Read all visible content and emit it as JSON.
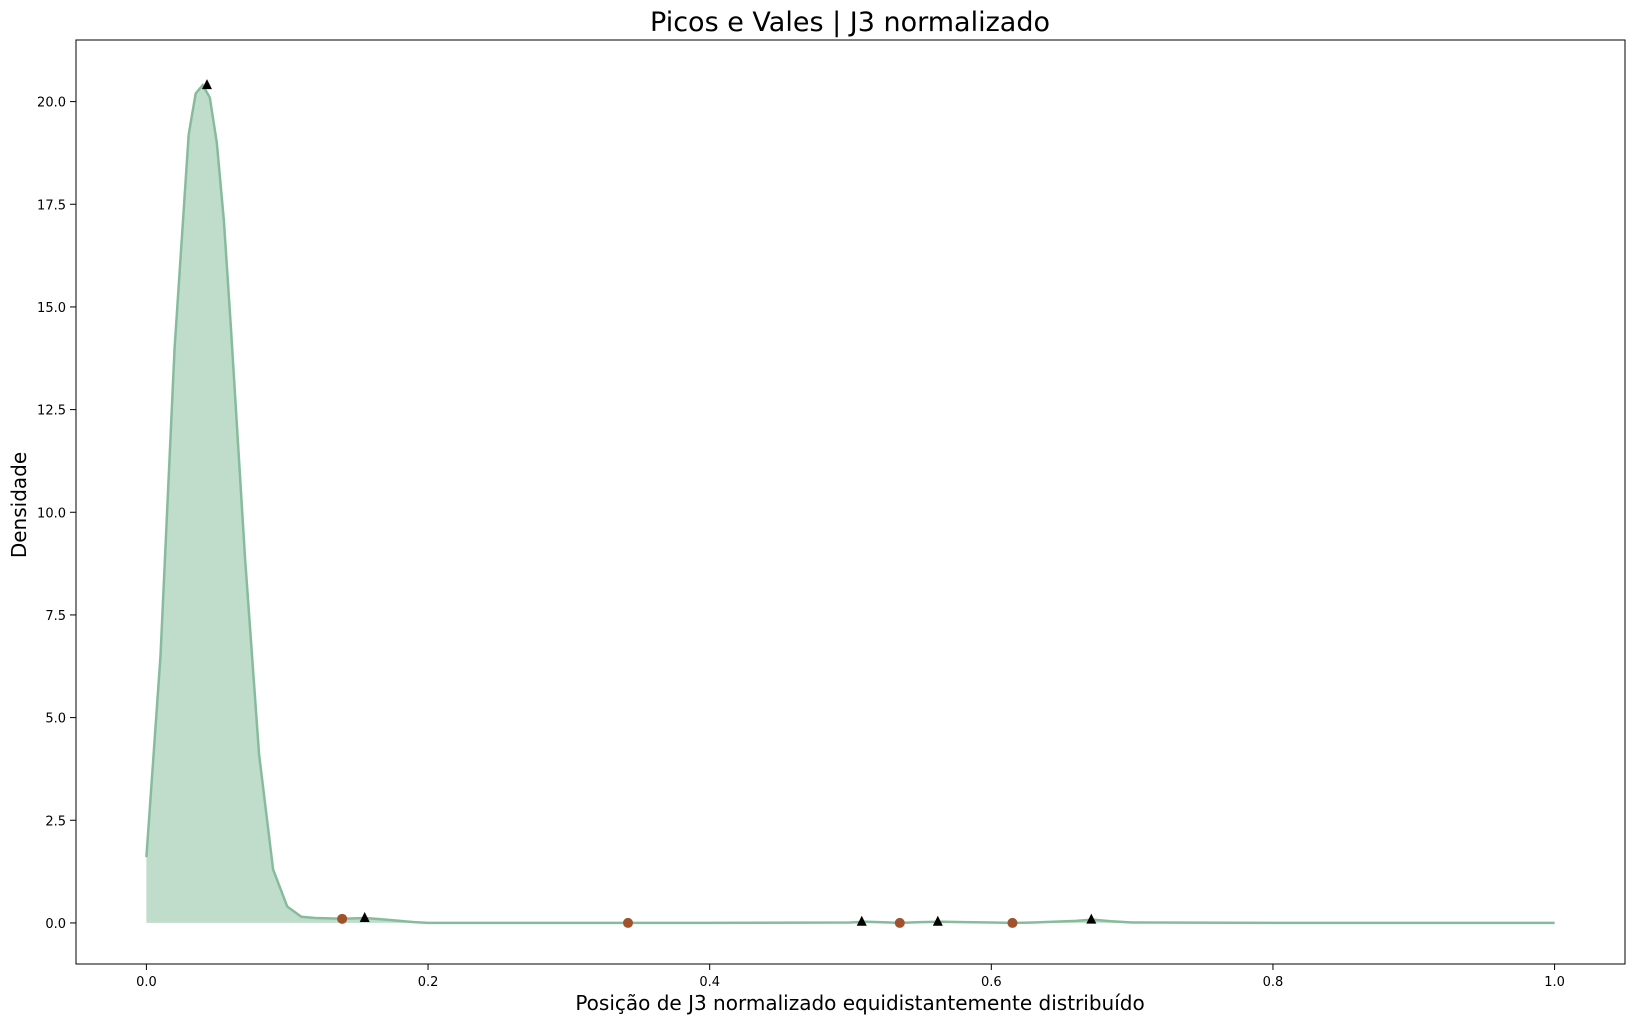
{
  "chart_data": {
    "type": "area",
    "title": "Picos e Vales | J3 normalizado",
    "xlabel": "Posição de J3 normalizado equidistantemente distribuído",
    "ylabel": "Densidade",
    "xlim": [
      -0.05,
      1.05
    ],
    "ylim": [
      -1.0,
      21.5
    ],
    "xticks": [
      0.0,
      0.2,
      0.4,
      0.6,
      0.8,
      1.0
    ],
    "xtick_labels": [
      "0.0",
      "0.2",
      "0.4",
      "0.6",
      "0.8",
      "1.0"
    ],
    "yticks": [
      0.0,
      2.5,
      5.0,
      7.5,
      10.0,
      12.5,
      15.0,
      17.5,
      20.0
    ],
    "ytick_labels": [
      "0.0",
      "2.5",
      "5.0",
      "7.5",
      "10.0",
      "12.5",
      "15.0",
      "17.5",
      "20.0"
    ],
    "grid": false,
    "legend": "none",
    "colors": {
      "area_fill": "#c0ddcc",
      "line": "#86bc9c",
      "peak_marker": "#000000",
      "valley_marker": "#a0522d"
    },
    "series": [
      {
        "x": [
          0.0,
          0.01,
          0.02,
          0.03,
          0.035,
          0.04,
          0.045,
          0.05,
          0.055,
          0.06,
          0.07,
          0.08,
          0.09,
          0.1,
          0.11,
          0.12,
          0.13,
          0.14,
          0.155,
          0.17,
          0.19,
          0.2,
          0.3,
          0.4,
          0.5,
          0.51,
          0.52,
          0.535,
          0.55,
          0.565,
          0.58,
          0.6,
          0.615,
          0.63,
          0.66,
          0.672,
          0.685,
          0.7,
          0.8,
          0.9,
          1.0
        ],
        "y": [
          1.6,
          6.5,
          14.0,
          19.2,
          20.2,
          20.4,
          20.1,
          19.0,
          17.1,
          14.5,
          8.9,
          4.1,
          1.3,
          0.4,
          0.15,
          0.12,
          0.11,
          0.1,
          0.12,
          0.08,
          0.02,
          0.0,
          0.0,
          0.0,
          0.01,
          0.03,
          0.02,
          0.0,
          0.02,
          0.03,
          0.02,
          0.01,
          0.0,
          0.01,
          0.05,
          0.08,
          0.04,
          0.01,
          0.0,
          0.0,
          0.0
        ]
      }
    ],
    "peaks": {
      "x": [
        0.043,
        0.155,
        0.508,
        0.562,
        0.671
      ],
      "y": [
        20.4,
        0.12,
        0.03,
        0.03,
        0.08
      ]
    },
    "valleys": {
      "x": [
        0.139,
        0.342,
        0.535,
        0.615
      ],
      "y": [
        0.1,
        0.0,
        0.0,
        0.0
      ]
    }
  }
}
